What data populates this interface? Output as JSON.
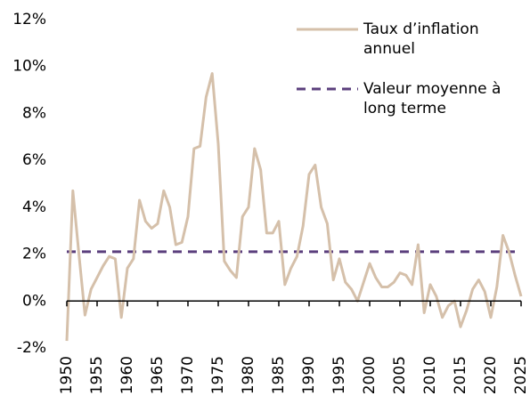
{
  "chart_data": {
    "type": "line",
    "x": [
      1950,
      1951,
      1952,
      1953,
      1954,
      1955,
      1956,
      1957,
      1958,
      1959,
      1960,
      1961,
      1962,
      1963,
      1964,
      1965,
      1966,
      1967,
      1968,
      1969,
      1970,
      1971,
      1972,
      1973,
      1974,
      1975,
      1976,
      1977,
      1978,
      1979,
      1980,
      1981,
      1982,
      1983,
      1984,
      1985,
      1986,
      1987,
      1988,
      1989,
      1990,
      1991,
      1992,
      1993,
      1994,
      1995,
      1996,
      1997,
      1998,
      1999,
      2000,
      2001,
      2002,
      2003,
      2004,
      2005,
      2006,
      2007,
      2008,
      2009,
      2010,
      2011,
      2012,
      2013,
      2014,
      2015,
      2016,
      2017,
      2018,
      2019,
      2020,
      2021,
      2022,
      2023,
      2024,
      2025
    ],
    "series": [
      {
        "name": "Taux d’inflation annuel",
        "color": "#d5c0aa",
        "values": [
          -1.7,
          4.7,
          2.0,
          -0.6,
          0.5,
          1.0,
          1.5,
          1.9,
          1.8,
          -0.7,
          1.4,
          1.8,
          4.3,
          3.4,
          3.1,
          3.3,
          4.7,
          4.0,
          2.4,
          2.5,
          3.6,
          6.5,
          6.6,
          8.7,
          9.7,
          6.7,
          1.7,
          1.3,
          1.0,
          3.6,
          4.0,
          6.5,
          5.6,
          2.9,
          2.9,
          3.4,
          0.7,
          1.4,
          1.9,
          3.2,
          5.4,
          5.8,
          4.0,
          3.3,
          0.9,
          1.8,
          0.8,
          0.5,
          0.0,
          0.8,
          1.6,
          1.0,
          0.6,
          0.6,
          0.8,
          1.2,
          1.1,
          0.7,
          2.4,
          -0.5,
          0.7,
          0.2,
          -0.7,
          -0.2,
          0.0,
          -1.1,
          -0.4,
          0.5,
          0.9,
          0.4,
          -0.7,
          0.6,
          2.8,
          2.1,
          1.1,
          0.2
        ]
      }
    ],
    "reference_line": {
      "name": "Valeur moyenne à long terme",
      "value": 2.1,
      "color": "#5b3f7d",
      "style": "dashed"
    },
    "xlim": [
      1950,
      2025
    ],
    "xticks": [
      1950,
      1955,
      1960,
      1965,
      1970,
      1975,
      1980,
      1985,
      1990,
      1995,
      2000,
      2005,
      2010,
      2015,
      2020,
      2025
    ],
    "ylim": [
      -2,
      12
    ],
    "yticks": [
      {
        "value": -2,
        "label": "-2%"
      },
      {
        "value": 0,
        "label": "0%"
      },
      {
        "value": 2,
        "label": "2%"
      },
      {
        "value": 4,
        "label": "4%"
      },
      {
        "value": 6,
        "label": "6%"
      },
      {
        "value": 8,
        "label": "8%"
      },
      {
        "value": 10,
        "label": "10%"
      },
      {
        "value": 12,
        "label": "12%"
      }
    ],
    "grid": false,
    "legend": "top-right"
  }
}
